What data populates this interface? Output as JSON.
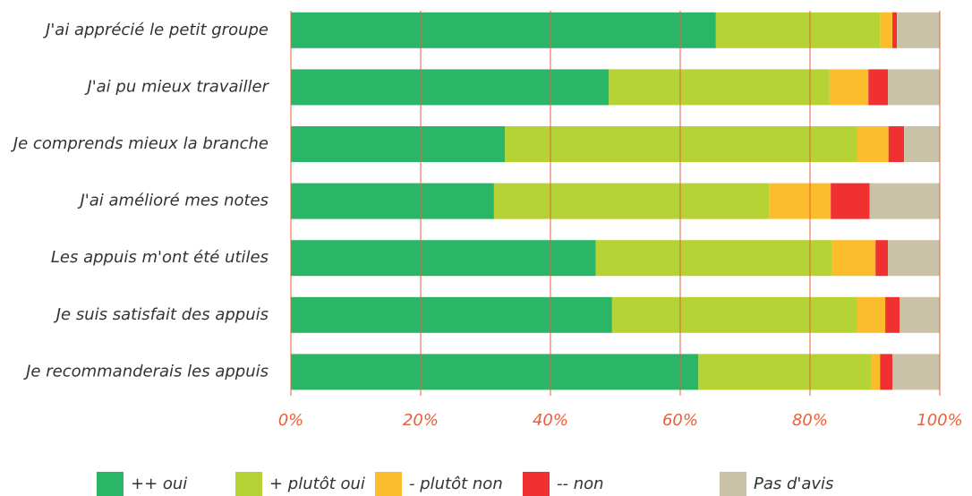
{
  "chart_data": {
    "type": "stacked-bar-horizontal",
    "categories": [
      "J'ai apprécié le petit groupe",
      "J'ai pu mieux travailler",
      "Je comprends mieux la branche",
      "J'ai amélioré mes notes",
      "Les appuis m'ont été utiles",
      "Je suis satisfait des appuis",
      "Je recommanderais les appuis"
    ],
    "series": [
      {
        "name": "++ oui",
        "color": "#2bb566",
        "values": [
          65.5,
          49,
          33,
          31.3,
          47,
          49.5,
          62.8
        ]
      },
      {
        "name": "+ plutôt oui",
        "color": "#b5d334",
        "values": [
          25.3,
          34,
          54.3,
          42.4,
          36.4,
          37.8,
          26.7
        ]
      },
      {
        "name": "- plutôt non",
        "color": "#fbbd2b",
        "values": [
          1.9,
          6,
          4.8,
          9.5,
          6.7,
          4.3,
          1.3
        ]
      },
      {
        "name": "-- non",
        "color": "#ef3131",
        "values": [
          0.7,
          3,
          2.4,
          6,
          1.9,
          2.2,
          1.9
        ]
      },
      {
        "name": "Pas d'avis",
        "color": "#c9c2a6",
        "values": [
          6.6,
          8,
          5.5,
          10.8,
          8,
          6.2,
          7.3
        ]
      }
    ],
    "xlim": [
      0,
      100
    ],
    "xticks": [
      {
        "value": 0,
        "label": "0%"
      },
      {
        "value": 20,
        "label": "20%"
      },
      {
        "value": 40,
        "label": "40%"
      },
      {
        "value": 60,
        "label": "60%"
      },
      {
        "value": 80,
        "label": "80%"
      },
      {
        "value": 100,
        "label": "100%"
      }
    ],
    "grid": true,
    "grid_color": "#e8603c",
    "legend": "bottom"
  }
}
